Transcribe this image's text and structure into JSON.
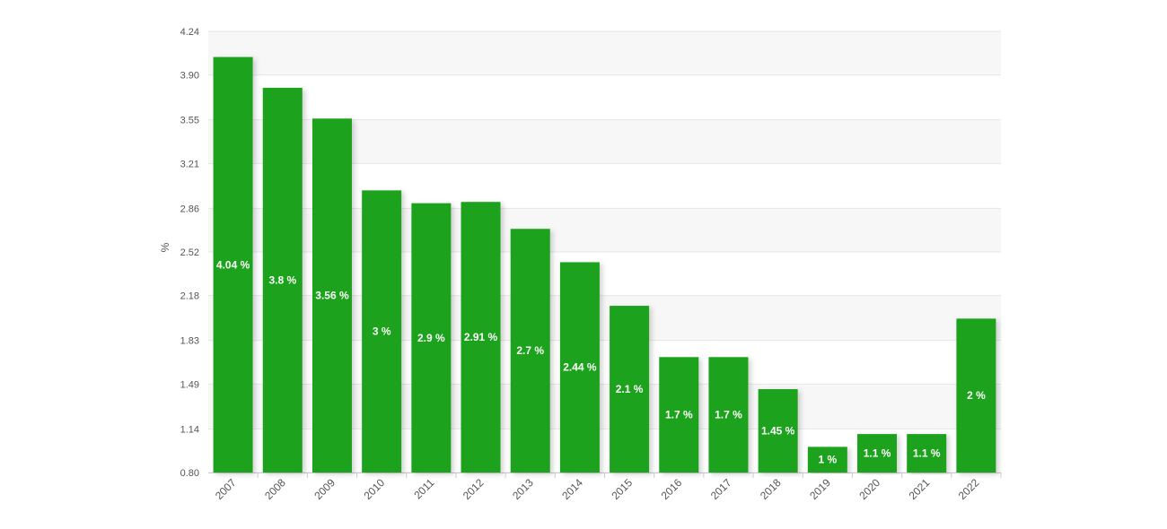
{
  "chart_data": {
    "type": "bar",
    "title": "",
    "xlabel": "",
    "ylabel": "%",
    "ylim": [
      0.8,
      4.24
    ],
    "yticks": [
      "0.80",
      "1.14",
      "1.49",
      "1.83",
      "2.18",
      "2.52",
      "2.86",
      "3.21",
      "3.55",
      "3.90",
      "4.24"
    ],
    "categories": [
      "2007",
      "2008",
      "2009",
      "2010",
      "2011",
      "2012",
      "2013",
      "2014",
      "2015",
      "2016",
      "2017",
      "2018",
      "2019",
      "2020",
      "2021",
      "2022"
    ],
    "values": [
      4.04,
      3.8,
      3.56,
      3,
      2.9,
      2.91,
      2.7,
      2.44,
      2.1,
      1.7,
      1.7,
      1.45,
      1,
      1.1,
      1.1,
      2
    ],
    "labels": [
      "4.04 %",
      "3.8 %",
      "3.56 %",
      "3 %",
      "2.9 %",
      "2.91 %",
      "2.7 %",
      "2.44 %",
      "2.1 %",
      "1.7 %",
      "1.7 %",
      "1.45 %",
      "1 %",
      "1.1 %",
      "1.1 %",
      "2 %"
    ],
    "bar_color": "#1fa21f",
    "band_color": "#f7f7f7",
    "grid": true,
    "legend": "none"
  }
}
